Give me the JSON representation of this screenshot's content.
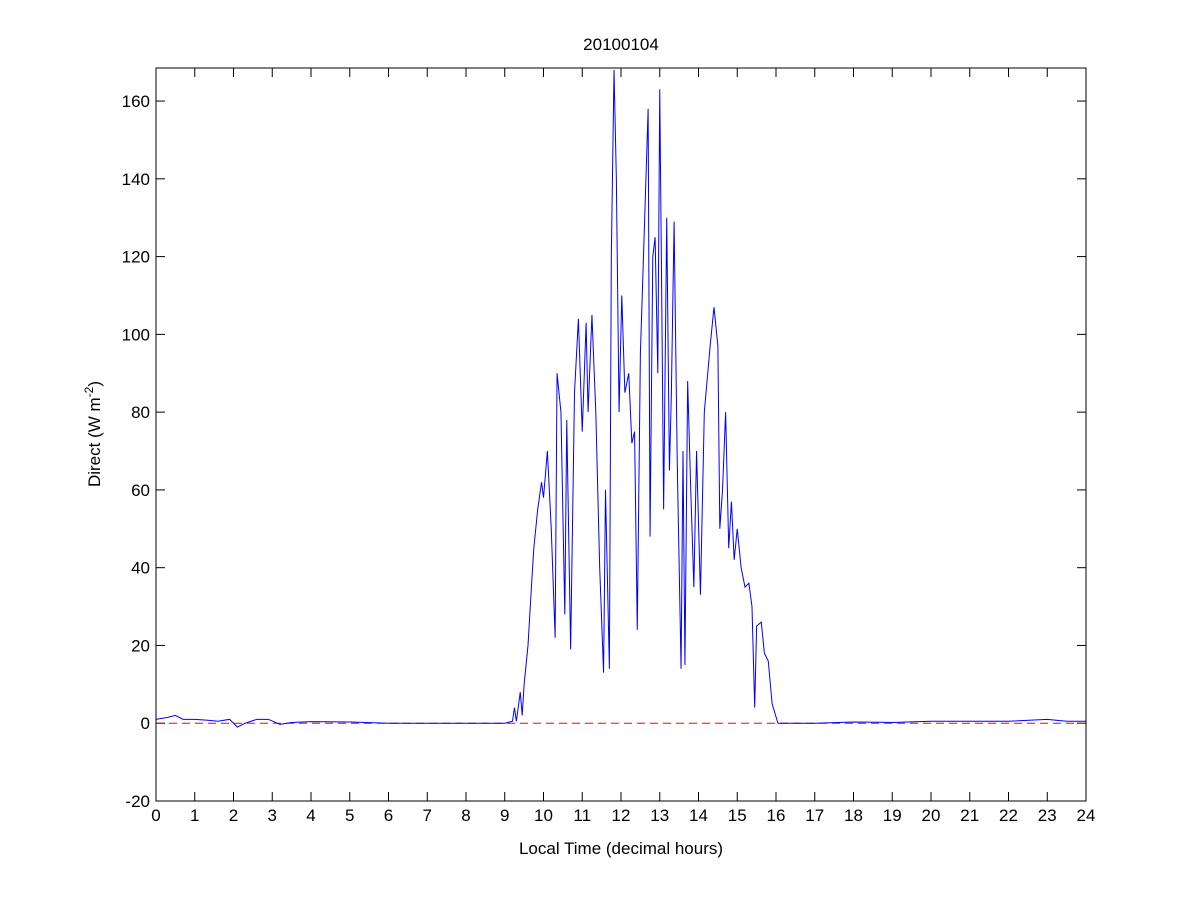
{
  "chart_data": {
    "type": "line",
    "title": "20100104",
    "xlabel": "Local Time (decimal hours)",
    "ylabel": {
      "text": "Direct (W m",
      "superscript": "-2",
      "suffix": ")"
    },
    "xlim": [
      0,
      24
    ],
    "xticks": [
      0,
      1,
      2,
      3,
      4,
      5,
      6,
      7,
      8,
      9,
      10,
      11,
      12,
      13,
      14,
      15,
      16,
      17,
      18,
      19,
      20,
      21,
      22,
      23,
      24
    ],
    "ylim": [
      -20,
      168.5
    ],
    "yticks": [
      -20,
      0,
      20,
      40,
      60,
      80,
      100,
      120,
      140,
      160
    ],
    "reference_line": {
      "value": 0,
      "color": "#ff0000",
      "style": "dashed"
    },
    "series": [
      {
        "name": "Direct",
        "color": "#0000ff",
        "x": [
          0,
          0.3,
          0.5,
          0.7,
          1,
          1.3,
          1.6,
          1.9,
          2.1,
          2.3,
          2.6,
          2.9,
          3.2,
          3.5,
          4,
          5,
          6,
          7,
          8,
          9,
          9.2,
          9.25,
          9.3,
          9.4,
          9.45,
          9.5,
          9.6,
          9.7,
          9.75,
          9.85,
          9.95,
          10.0,
          10.1,
          10.2,
          10.3,
          10.35,
          10.45,
          10.55,
          10.6,
          10.7,
          10.8,
          10.9,
          11.0,
          11.1,
          11.15,
          11.25,
          11.35,
          11.45,
          11.55,
          11.6,
          11.7,
          11.75,
          11.82,
          11.88,
          11.95,
          12.02,
          12.1,
          12.2,
          12.28,
          12.35,
          12.42,
          12.5,
          12.58,
          12.7,
          12.75,
          12.82,
          12.88,
          12.95,
          13.0,
          13.06,
          13.1,
          13.18,
          13.25,
          13.3,
          13.37,
          13.45,
          13.55,
          13.6,
          13.65,
          13.72,
          13.8,
          13.88,
          13.95,
          14.05,
          14.15,
          14.3,
          14.4,
          14.5,
          14.55,
          14.62,
          14.7,
          14.78,
          14.85,
          14.92,
          15.0,
          15.1,
          15.2,
          15.3,
          15.38,
          15.45,
          15.5,
          15.62,
          15.7,
          15.8,
          15.9,
          16.05,
          17,
          18,
          19,
          20,
          21,
          22,
          23,
          23.5,
          24
        ],
        "values": [
          1,
          1.5,
          2,
          1,
          1,
          0.8,
          0.5,
          1,
          -1,
          0,
          1,
          1,
          -0.3,
          0.2,
          0.4,
          0.3,
          0,
          0,
          0,
          0,
          0.5,
          4,
          0.5,
          8,
          2,
          10,
          20,
          37,
          45,
          55,
          62,
          58,
          70,
          50,
          22,
          90,
          80,
          28,
          78,
          19,
          85,
          104,
          75,
          103,
          80,
          105,
          80,
          40,
          13,
          60,
          14,
          120,
          168,
          140,
          80,
          110,
          85,
          90,
          72,
          75,
          24,
          95,
          120,
          158,
          48,
          120,
          125,
          90,
          163,
          100,
          55,
          130,
          65,
          85,
          129,
          68,
          14,
          70,
          15,
          88,
          60,
          35,
          70,
          33,
          80,
          97,
          107,
          97,
          50,
          60,
          80,
          45,
          57,
          42,
          50,
          40,
          35,
          36,
          30,
          4,
          25,
          26,
          18,
          16,
          5,
          0,
          0,
          0.3,
          0.2,
          0.5,
          0.5,
          0.5,
          1,
          0.5,
          0.5
        ]
      }
    ]
  }
}
